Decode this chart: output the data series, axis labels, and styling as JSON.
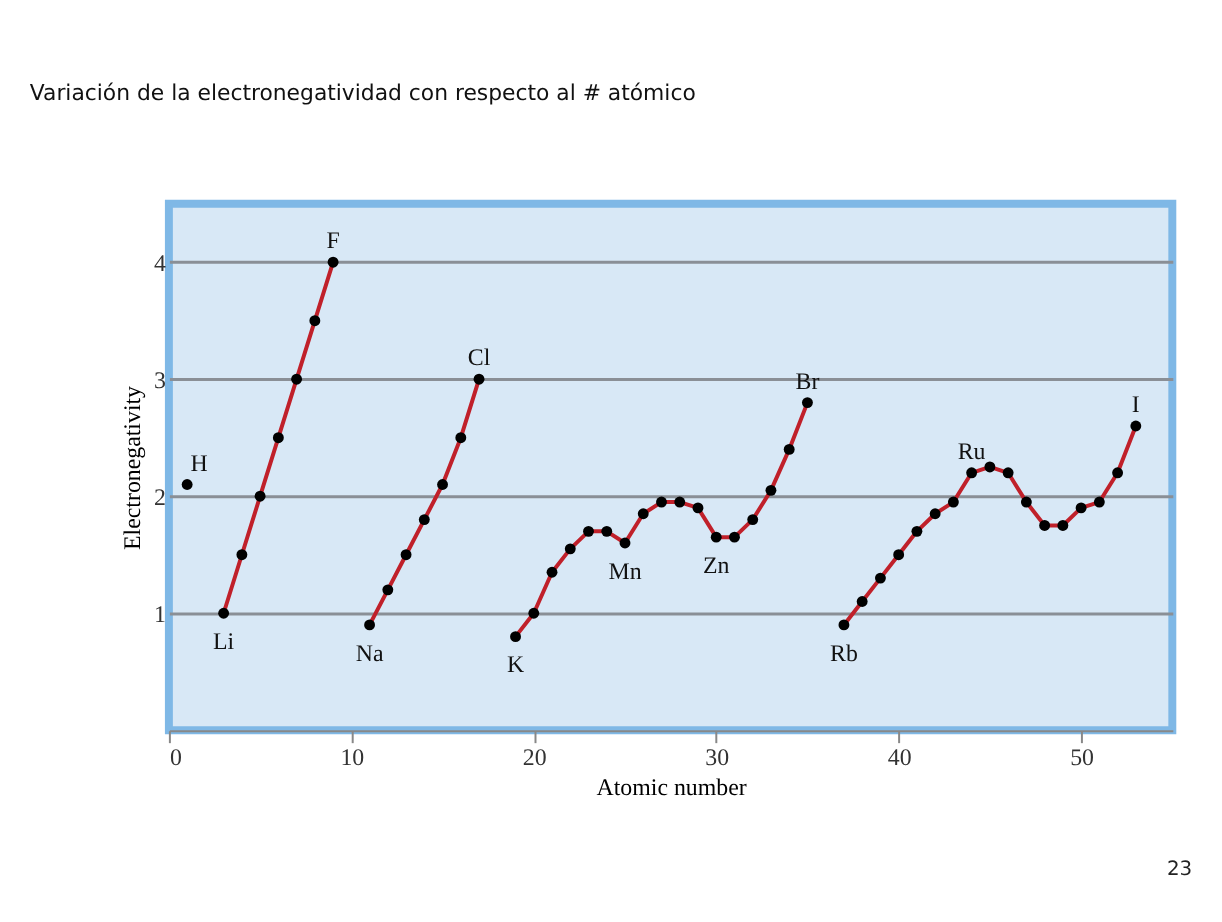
{
  "chart_data": {
    "type": "line",
    "title": "Variación de la electronegatividad con respecto al # atómico",
    "xlabel": "Atomic number",
    "ylabel": "Electronegativity",
    "xlim": [
      0,
      55
    ],
    "ylim": [
      0,
      4.5
    ],
    "xticks": [
      0,
      10,
      20,
      30,
      40,
      50
    ],
    "yticks": [
      1,
      2,
      3,
      4
    ],
    "grid": "y",
    "marker": "circle",
    "line_style": "solid",
    "series": [
      {
        "type": "scatter",
        "color": "#000000",
        "x": [
          1
        ],
        "values": [
          2.1
        ]
      },
      {
        "color": "#c0202a",
        "x": [
          3,
          4,
          5,
          6,
          7,
          8,
          9
        ],
        "values": [
          1.0,
          1.5,
          2.0,
          2.5,
          3.0,
          3.5,
          4.0
        ]
      },
      {
        "color": "#c0202a",
        "x": [
          11,
          12,
          13,
          14,
          15,
          16,
          17
        ],
        "values": [
          0.9,
          1.2,
          1.5,
          1.8,
          2.1,
          2.5,
          3.0
        ]
      },
      {
        "color": "#c0202a",
        "x": [
          19,
          20,
          21,
          22,
          23,
          24,
          25,
          26,
          27,
          28,
          29,
          30,
          31,
          32,
          33,
          34,
          35
        ],
        "values": [
          0.8,
          1.0,
          1.35,
          1.55,
          1.7,
          1.7,
          1.6,
          1.85,
          1.95,
          1.95,
          1.9,
          1.65,
          1.65,
          1.8,
          2.05,
          2.4,
          2.8
        ]
      },
      {
        "color": "#c0202a",
        "x": [
          37,
          38,
          39,
          40,
          41,
          42,
          43,
          44,
          45,
          46,
          47,
          48,
          49,
          50,
          51,
          52,
          53
        ],
        "values": [
          0.9,
          1.1,
          1.3,
          1.5,
          1.7,
          1.85,
          1.95,
          2.2,
          2.25,
          2.2,
          1.95,
          1.75,
          1.75,
          1.9,
          1.95,
          2.2,
          2.6
        ]
      }
    ],
    "annotations": [
      {
        "text": "H",
        "x": 1,
        "y": 2.1
      },
      {
        "text": "Li",
        "x": 3,
        "y": 1.0
      },
      {
        "text": "F",
        "x": 9,
        "y": 4.0
      },
      {
        "text": "Na",
        "x": 11,
        "y": 0.9
      },
      {
        "text": "Cl",
        "x": 17,
        "y": 3.0
      },
      {
        "text": "K",
        "x": 19,
        "y": 0.8
      },
      {
        "text": "Mn",
        "x": 25,
        "y": 1.6
      },
      {
        "text": "Zn",
        "x": 30,
        "y": 1.65
      },
      {
        "text": "Br",
        "x": 35,
        "y": 2.8
      },
      {
        "text": "Rb",
        "x": 37,
        "y": 0.9
      },
      {
        "text": "Ru",
        "x": 44,
        "y": 2.2
      },
      {
        "text": "I",
        "x": 53,
        "y": 2.6
      },
      "23"
    ]
  }
}
